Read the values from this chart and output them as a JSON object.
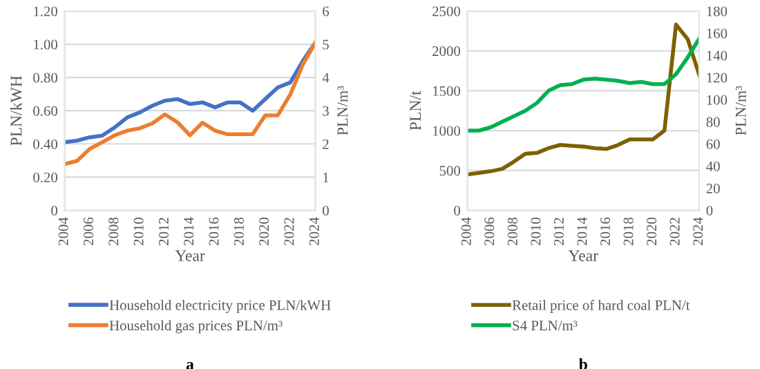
{
  "chart_data": [
    {
      "type": "line",
      "xlabel": "Year",
      "ylabel": "PLN/kWH",
      "y2label": "PLN/m³",
      "annotations": [
        "a"
      ],
      "x": [
        2004,
        2005,
        2006,
        2007,
        2008,
        2009,
        2010,
        2011,
        2012,
        2013,
        2014,
        2015,
        2016,
        2017,
        2018,
        2019,
        2020,
        2021,
        2022,
        2023,
        2024
      ],
      "series": [
        {
          "name": "Household electricity price PLN/kWH",
          "color": "#4472c4",
          "values": [
            0.41,
            0.42,
            0.44,
            0.45,
            0.5,
            0.56,
            0.59,
            0.63,
            0.66,
            0.67,
            0.64,
            0.65,
            0.62,
            0.65,
            0.65,
            0.6,
            0.67,
            0.74,
            0.77,
            0.9,
            1.01
          ]
        },
        {
          "name": "Household gas prices PLN/m³",
          "color": "#ed7d31",
          "axis": "y2",
          "values": [
            1.39,
            1.49,
            1.85,
            2.05,
            2.26,
            2.4,
            2.47,
            2.62,
            2.89,
            2.65,
            2.26,
            2.64,
            2.4,
            2.29,
            2.29,
            2.29,
            2.86,
            2.86,
            3.49,
            4.39,
            5.05
          ]
        }
      ],
      "xlim": [
        2004,
        2024
      ],
      "xticks": [
        2004,
        2006,
        2008,
        2010,
        2012,
        2014,
        2016,
        2018,
        2020,
        2022,
        2024
      ],
      "ylim": [
        0,
        1.2
      ],
      "yticks": [
        {
          "value": 0,
          "label": "0"
        },
        {
          "value": 0.2,
          "label": "0.20"
        },
        {
          "value": 0.4,
          "label": "0.40"
        },
        {
          "value": 0.6,
          "label": "0.60"
        },
        {
          "value": 0.8,
          "label": "0.80"
        },
        {
          "value": 1.0,
          "label": "1.00"
        },
        {
          "value": 1.2,
          "label": "1.20"
        }
      ],
      "y2lim": [
        0,
        6
      ],
      "y2ticks": [
        0,
        1,
        2,
        3,
        4,
        5,
        6
      ],
      "grid": "y",
      "legend": "bottom",
      "marker": "none",
      "line_style": "solid"
    },
    {
      "type": "line",
      "xlabel": "Year",
      "ylabel": "PLN/t",
      "y2label": "PLN/m³",
      "annotations": [
        "b"
      ],
      "x": [
        2004,
        2005,
        2006,
        2007,
        2008,
        2009,
        2010,
        2011,
        2012,
        2013,
        2014,
        2015,
        2016,
        2017,
        2018,
        2019,
        2020,
        2021,
        2022,
        2023,
        2024
      ],
      "series": [
        {
          "name": "Retail price of hard coal PLN/t",
          "color": "#7f6000",
          "values": [
            450,
            470,
            490,
            520,
            610,
            710,
            720,
            780,
            820,
            810,
            800,
            780,
            770,
            820,
            890,
            890,
            890,
            1000,
            2330,
            2150,
            1700
          ]
        },
        {
          "name": "S4 PLN/m³",
          "color": "#00b050",
          "axis": "y2",
          "values": [
            72,
            72,
            75,
            80,
            85,
            90,
            97,
            108,
            113,
            114,
            118,
            119,
            118,
            117,
            115,
            116,
            114,
            114,
            123,
            138,
            155
          ]
        }
      ],
      "xlim": [
        2004,
        2024
      ],
      "xticks": [
        2004,
        2006,
        2008,
        2010,
        2012,
        2014,
        2016,
        2018,
        2020,
        2022,
        2024
      ],
      "ylim": [
        0,
        2500
      ],
      "yticks": [
        0,
        500,
        1000,
        1500,
        2000,
        2500
      ],
      "y2lim": [
        0,
        180
      ],
      "y2ticks": [
        0,
        20,
        40,
        60,
        80,
        100,
        120,
        140,
        160,
        180
      ],
      "grid": "y",
      "legend": "bottom",
      "marker": "none",
      "line_style": "solid"
    }
  ]
}
